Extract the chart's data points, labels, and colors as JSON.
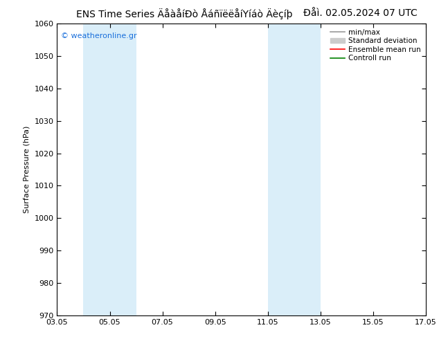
{
  "title_main": "ENS Time Series ÄåàåíÐò ÅáñïëëåíYíáò Äèçíþ",
  "title_date": "Ðåì. 02.05.2024 07 UTC",
  "ylabel": "Surface Pressure (hPa)",
  "ylim": [
    970,
    1060
  ],
  "yticks": [
    970,
    980,
    990,
    1000,
    1010,
    1020,
    1030,
    1040,
    1050,
    1060
  ],
  "xlim": [
    0,
    14
  ],
  "xtick_labels": [
    "03.05",
    "05.05",
    "07.05",
    "09.05",
    "11.05",
    "13.05",
    "15.05",
    "17.05"
  ],
  "xtick_positions": [
    0,
    2,
    4,
    6,
    8,
    10,
    12,
    14
  ],
  "shaded_bands": [
    {
      "x_start": 1.0,
      "x_end": 3.0,
      "color": "#daeef9"
    },
    {
      "x_start": 8.0,
      "x_end": 10.0,
      "color": "#daeef9"
    }
  ],
  "bg_color": "#ffffff",
  "plot_bg_color": "#ffffff",
  "watermark": "© weatheronline.gr",
  "watermark_color": "#1a6fdb",
  "legend_items": [
    {
      "label": "min/max",
      "color": "#999999",
      "lw": 1.2,
      "style": "line"
    },
    {
      "label": "Standard deviation",
      "color": "#cccccc",
      "lw": 6,
      "style": "band"
    },
    {
      "label": "Ensemble mean run",
      "color": "#ff0000",
      "lw": 1.2,
      "style": "line"
    },
    {
      "label": "Controll run",
      "color": "#008000",
      "lw": 1.2,
      "style": "line"
    }
  ],
  "title_fontsize": 10,
  "ylabel_fontsize": 8,
  "tick_fontsize": 8,
  "legend_fontsize": 7.5,
  "watermark_fontsize": 8,
  "border_color": "#000000",
  "tick_color": "#000000"
}
